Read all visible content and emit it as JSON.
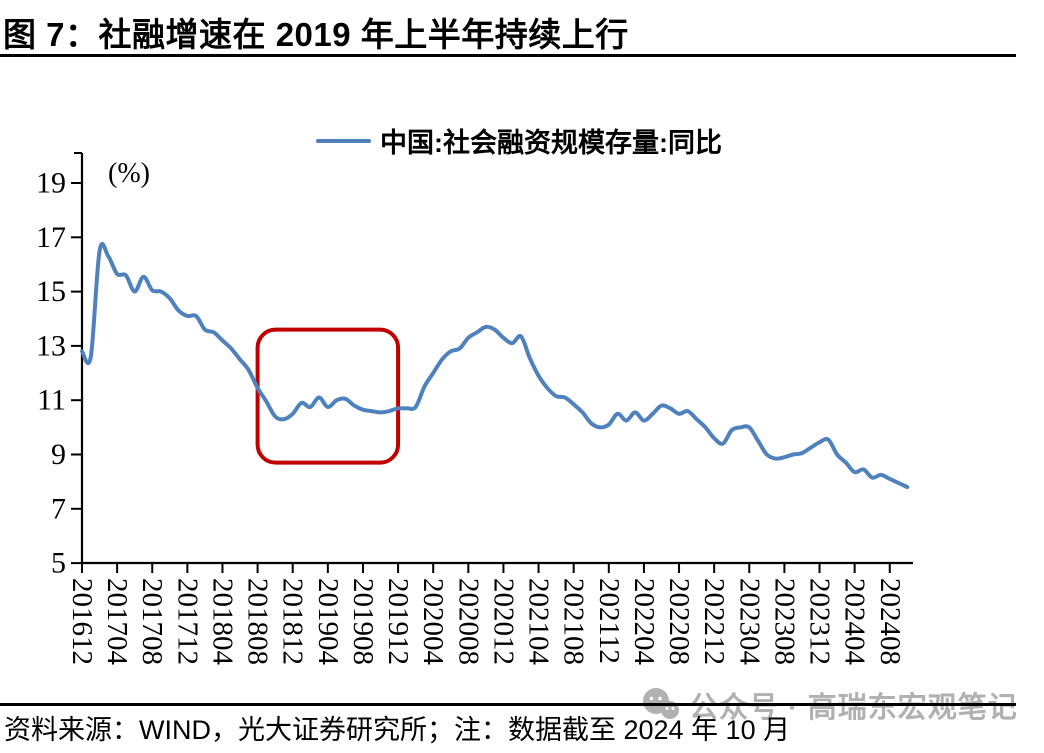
{
  "header": {
    "title": "图 7：社融增速在 2019 年上半年持续上行"
  },
  "legend": {
    "label": "中国:社会融资规模存量:同比"
  },
  "chart_data": {
    "type": "line",
    "title": "图 7：社融增速在 2019 年上半年持续上行",
    "unit_label": "(%)",
    "xlabel": "",
    "ylabel": "(%)",
    "ylim": [
      5,
      20.1
    ],
    "grid": false,
    "legend_position": "top-center",
    "y_ticks": [
      5,
      7,
      9,
      11,
      13,
      15,
      17,
      19
    ],
    "x_tick_labels": [
      "201612",
      "201704",
      "201708",
      "201712",
      "201804",
      "201808",
      "201812",
      "201904",
      "201908",
      "201912",
      "202004",
      "202008",
      "202012",
      "202104",
      "202108",
      "202112",
      "202204",
      "202208",
      "202212",
      "202304",
      "202308",
      "202312",
      "202404",
      "202408"
    ],
    "series": [
      {
        "name": "中国:社会融资规模存量:同比",
        "color": "#4F81BD",
        "frequency": "monthly",
        "start_month": "2016-12",
        "end_month": "2024-10",
        "unit": "%",
        "values": [
          12.8,
          12.6,
          16.5,
          16.3,
          15.65,
          15.6,
          15.0,
          15.55,
          15.05,
          15.0,
          14.75,
          14.3,
          14.1,
          14.1,
          13.6,
          13.5,
          13.2,
          12.9,
          12.5,
          12.1,
          11.45,
          10.95,
          10.4,
          10.3,
          10.5,
          10.9,
          10.75,
          11.1,
          10.75,
          11.0,
          11.05,
          10.8,
          10.65,
          10.6,
          10.55,
          10.6,
          10.7,
          10.7,
          10.75,
          11.5,
          12.0,
          12.5,
          12.8,
          12.9,
          13.3,
          13.5,
          13.7,
          13.6,
          13.3,
          13.1,
          13.35,
          12.55,
          11.9,
          11.45,
          11.15,
          11.1,
          10.85,
          10.55,
          10.15,
          10.0,
          10.1,
          10.5,
          10.25,
          10.55,
          10.25,
          10.5,
          10.8,
          10.7,
          10.5,
          10.6,
          10.3,
          10.0,
          9.6,
          9.4,
          9.9,
          10.0,
          10.0,
          9.5,
          9.0,
          8.85,
          8.9,
          9.0,
          9.05,
          9.25,
          9.45,
          9.55,
          9.0,
          8.7,
          8.35,
          8.45,
          8.15,
          8.25,
          8.1,
          7.95,
          7.8
        ]
      }
    ],
    "annotation_box": {
      "from_month": "2018-08",
      "to_month": "2019-12",
      "value_bottom": 8.7,
      "value_top": 13.6,
      "color": "#C00000"
    }
  },
  "footer": {
    "source": "资料来源：WIND，光大证券研究所；注：数据截至 2024 年 10 月"
  },
  "watermark": {
    "text": "公众号 · 高瑞东宏观笔记",
    "icon": "wechat-icon"
  },
  "colors": {
    "line": "#4F81BD",
    "annotation_box": "#C00000",
    "axis": "#000000",
    "rules": "#000000",
    "watermark_gray": "#b1b1b1",
    "background": "#ffffff"
  }
}
